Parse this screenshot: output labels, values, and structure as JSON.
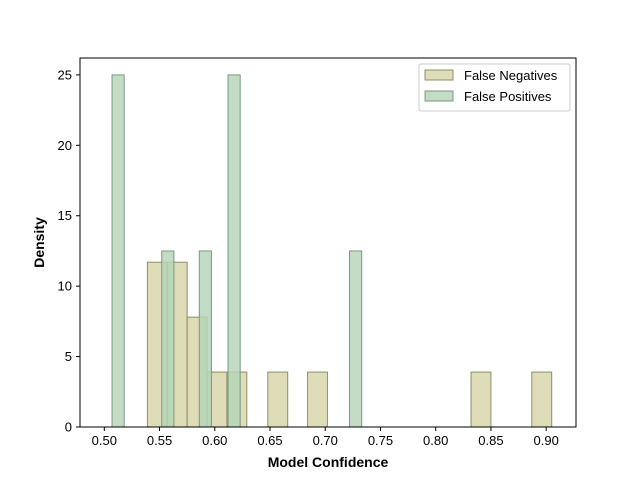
{
  "chart_data": {
    "type": "bar",
    "subtype": "histogram",
    "title": "",
    "xlabel": "Model Confidence",
    "ylabel": "Density",
    "xlim": [
      0.478,
      0.927
    ],
    "ylim": [
      0,
      26.2
    ],
    "xticks": [
      0.5,
      0.55,
      0.6,
      0.65,
      0.7,
      0.75,
      0.8,
      0.85,
      0.9
    ],
    "xtick_labels": [
      "0.50",
      "0.55",
      "0.60",
      "0.65",
      "0.70",
      "0.75",
      "0.80",
      "0.85",
      "0.90"
    ],
    "yticks": [
      0,
      5,
      10,
      15,
      20,
      25
    ],
    "ytick_labels": [
      "0",
      "5",
      "10",
      "15",
      "20",
      "25"
    ],
    "grid": false,
    "legend_position": "top-right",
    "series": [
      {
        "name": "False Negatives",
        "color": "#d8d4a8",
        "edge_color": "#8f8f6a",
        "bins": [
          {
            "x0": 0.539,
            "x1": 0.557,
            "value": 11.7
          },
          {
            "x0": 0.557,
            "x1": 0.575,
            "value": 11.7
          },
          {
            "x0": 0.575,
            "x1": 0.593,
            "value": 7.8
          },
          {
            "x0": 0.593,
            "x1": 0.611,
            "value": 3.9
          },
          {
            "x0": 0.611,
            "x1": 0.629,
            "value": 3.9
          },
          {
            "x0": 0.648,
            "x1": 0.666,
            "value": 3.9
          },
          {
            "x0": 0.684,
            "x1": 0.702,
            "value": 3.9
          },
          {
            "x0": 0.832,
            "x1": 0.85,
            "value": 3.9
          },
          {
            "x0": 0.887,
            "x1": 0.905,
            "value": 3.9
          }
        ]
      },
      {
        "name": "False Positives",
        "color": "#b5d4b8",
        "edge_color": "#7a9a7e",
        "bins": [
          {
            "x0": 0.507,
            "x1": 0.518,
            "value": 25
          },
          {
            "x0": 0.552,
            "x1": 0.563,
            "value": 12.5
          },
          {
            "x0": 0.586,
            "x1": 0.597,
            "value": 12.5
          },
          {
            "x0": 0.612,
            "x1": 0.623,
            "value": 25
          },
          {
            "x0": 0.722,
            "x1": 0.733,
            "value": 12.5
          }
        ]
      }
    ]
  }
}
